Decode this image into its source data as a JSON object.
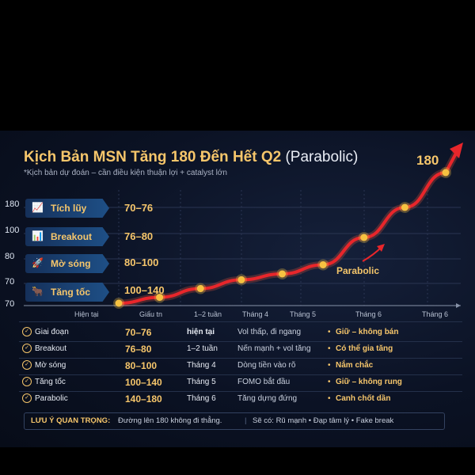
{
  "title": {
    "main": "Kịch Bản MSN Tăng 180 Đến Hết Q2",
    "paren": "(Parabolic)"
  },
  "subtitle": "*Kịch bản dự đoán – cần điều kiện thuận lợi + catalyst lớn",
  "stages": [
    {
      "label": "Tích lũy",
      "range": "70–76",
      "icon": "chart-up-icon",
      "icon_char": "📈"
    },
    {
      "label": "Breakout",
      "range": "76–80",
      "icon": "chart-breakout-icon",
      "icon_char": "📊"
    },
    {
      "label": "Mờ sóng",
      "range": "80–100",
      "icon": "rocket-icon",
      "icon_char": "🚀"
    },
    {
      "label": "Tăng tốc",
      "range": "100–140",
      "icon": "bull-icon",
      "icon_char": "🐂"
    }
  ],
  "chart_data": {
    "type": "line",
    "title": "Kịch Bản MSN Tăng 180 Đến Hết Q2 (Parabolic)",
    "ytick_labels": [
      "180",
      "100",
      "80",
      "70",
      "70"
    ],
    "xtick_labels": [
      "Hiện tại",
      "Giấu tn",
      "1–2 tuần",
      "Tháng 4",
      "Tháng 5",
      "Tháng 6",
      "Tháng 6"
    ],
    "series": [
      {
        "values": [
          70,
          72,
          75,
          78,
          80,
          85,
          100,
          140,
          180
        ]
      }
    ],
    "annotations": {
      "end_label": "180",
      "curve_label": "Parabolic"
    },
    "colors": {
      "line": "#e8262b",
      "point": "#f6c241",
      "grid": "#2a3552"
    },
    "grid": true
  },
  "table": {
    "rows": [
      {
        "name": "Giai đoạn",
        "range": "70–76",
        "time": "hiện tại",
        "desc": "Vol thấp, đi ngang",
        "action": "Giữ – không bán"
      },
      {
        "name": "Breakout",
        "range": "76–80",
        "time": "1–2 tuần",
        "desc": "Nến mạnh + vol tăng",
        "action": "Có thể gia tăng"
      },
      {
        "name": "Mờ sóng",
        "range": "80–100",
        "time": "Tháng 4",
        "desc": "Dòng tiền vào rõ",
        "action": "Nắm chắc"
      },
      {
        "name": "Tăng tốc",
        "range": "100–140",
        "time": "Tháng 5",
        "desc": "FOMO bắt đầu",
        "action": "Giữ – không rung"
      },
      {
        "name": "Parabolic",
        "range": "140–180",
        "time": "Tháng 6",
        "desc": "Tăng dựng đứng",
        "action": "Canh chốt dần"
      }
    ]
  },
  "note": {
    "label": "LƯU Ý QUAN TRỌNG:",
    "text": "Đường lên 180 không đi thẳng.",
    "extra": "Sẽ có: Rũ mạnh • Đạp tâm lý • Fake break"
  }
}
